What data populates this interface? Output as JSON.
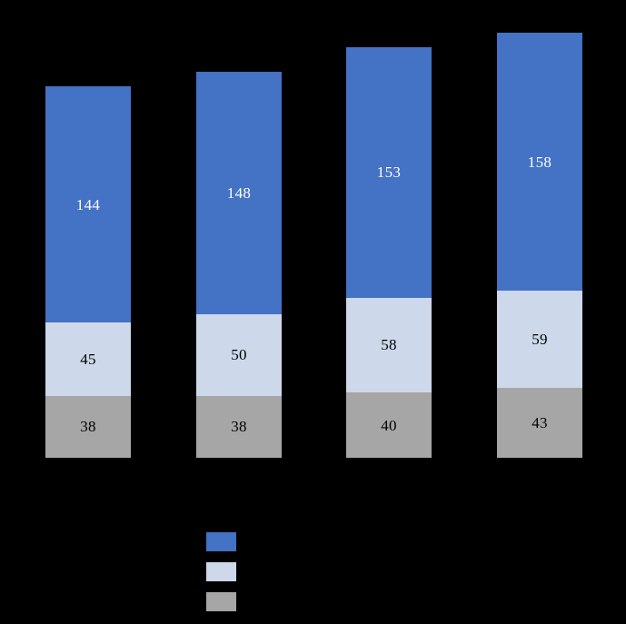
{
  "background_color": "#000000",
  "chart_data": {
    "type": "bar",
    "stacked": true,
    "orientation": "vertical",
    "title": "",
    "xlabel": "",
    "ylabel": "",
    "axes_visible": false,
    "grid": false,
    "categories": [
      "",
      "",
      "",
      ""
    ],
    "series": [
      {
        "name": "gray-bottom",
        "color": "#A6A6A6",
        "label_color": "#000000",
        "values": [
          38,
          38,
          40,
          43
        ]
      },
      {
        "name": "light-blue-middle",
        "color": "#CDD8EA",
        "label_color": "#000000",
        "values": [
          45,
          50,
          58,
          59
        ]
      },
      {
        "name": "blue-top",
        "color": "#4472C4",
        "label_color": "#FFFFFF",
        "values": [
          144,
          148,
          153,
          158
        ]
      }
    ],
    "stack_totals": [
      227,
      236,
      251,
      260
    ],
    "data_labels_visible": true,
    "legend": {
      "position": "bottom-center",
      "text_visible": false,
      "swatch_names": [
        "blue",
        "light-blue",
        "gray"
      ],
      "swatch_order": [
        "#4472C4",
        "#CDD8EA",
        "#A6A6A6"
      ]
    }
  }
}
